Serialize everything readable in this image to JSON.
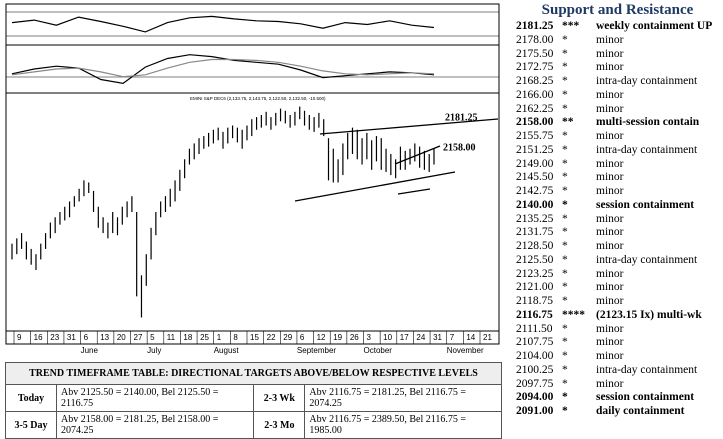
{
  "price_chart": {
    "type": "bar-range",
    "title": "EMINI S&P DEC6 (2,133.75, 2,143.75, 2,122.50, 2,132.50, -10.500)",
    "high": [
      2060,
      2065,
      2070,
      2062,
      2055,
      2050,
      2060,
      2070,
      2080,
      2085,
      2090,
      2095,
      2100,
      2105,
      2112,
      2120,
      2118,
      2110,
      2095,
      2085,
      2080,
      2090,
      2085,
      2095,
      2100,
      2105,
      2090,
      2030,
      2050,
      2075,
      2090,
      2100,
      2105,
      2112,
      2120,
      2130,
      2140,
      2150,
      2155,
      2160,
      2162,
      2165,
      2168,
      2170,
      2166,
      2170,
      2172,
      2170,
      2168,
      2172,
      2178,
      2180,
      2182,
      2185,
      2180,
      2184,
      2188,
      2186,
      2182,
      2185,
      2190,
      2186,
      2182,
      2180,
      2184,
      2178,
      2160,
      2150,
      2140,
      2155,
      2165,
      2170,
      2168,
      2160,
      2165,
      2158,
      2162,
      2160,
      2150,
      2145,
      2140,
      2152,
      2148,
      2150,
      2155,
      2152,
      2148,
      2145,
      2150
    ],
    "low": [
      2045,
      2050,
      2055,
      2045,
      2040,
      2035,
      2045,
      2055,
      2065,
      2070,
      2078,
      2082,
      2085,
      2095,
      2100,
      2105,
      2108,
      2090,
      2075,
      2070,
      2065,
      2070,
      2068,
      2078,
      2085,
      2090,
      2010,
      1990,
      2020,
      2045,
      2068,
      2085,
      2090,
      2095,
      2100,
      2110,
      2122,
      2135,
      2140,
      2145,
      2150,
      2152,
      2155,
      2158,
      2150,
      2155,
      2160,
      2156,
      2150,
      2158,
      2162,
      2168,
      2170,
      2172,
      2168,
      2172,
      2176,
      2174,
      2170,
      2172,
      2178,
      2172,
      2168,
      2166,
      2170,
      2162,
      2120,
      2118,
      2118,
      2125,
      2140,
      2145,
      2140,
      2135,
      2140,
      2130,
      2138,
      2130,
      2128,
      2125,
      2122,
      2130,
      2130,
      2135,
      2138,
      2132,
      2130,
      2128,
      2135
    ],
    "ylim": [
      1980,
      2200
    ],
    "color": "#000000",
    "annotations": [
      "2181.25",
      "2158.00"
    ],
    "x_labels": [
      "9",
      "16",
      "23",
      "31",
      "6",
      "13",
      "20",
      "27",
      "5",
      "11",
      "18",
      "25",
      "1",
      "8",
      "15",
      "22",
      "29",
      "6",
      "12",
      "19",
      "26",
      "3",
      "10",
      "17",
      "24",
      "31",
      "7",
      "14",
      "21"
    ],
    "months": [
      "June",
      "July",
      "August",
      "September",
      "October",
      "November"
    ],
    "rsi": {
      "values": [
        55,
        62,
        48,
        70,
        58,
        45,
        30,
        55,
        68,
        72,
        65,
        60,
        58,
        52,
        40,
        55,
        50,
        60,
        48,
        42
      ],
      "ylim": [
        0,
        100
      ]
    },
    "macd": {
      "series": [
        {
          "color": "#000000",
          "values": [
            -2,
            3,
            6,
            4,
            -8,
            -12,
            5,
            14,
            18,
            16,
            12,
            10,
            8,
            2,
            -6,
            -4,
            -2,
            0,
            -1,
            -3
          ]
        },
        {
          "color": "#888888",
          "values": [
            -3,
            0,
            3,
            4,
            0,
            -5,
            -3,
            4,
            10,
            13,
            13,
            12,
            10,
            6,
            1,
            -2,
            -3,
            -2,
            -1,
            -2
          ]
        }
      ],
      "ylim": [
        -20,
        25
      ]
    }
  },
  "trend_table": {
    "title": "TREND TIMEFRAME TABLE: DIRECTIONAL TARGETS ABOVE/BELOW RESPECTIVE LEVELS",
    "rows": [
      [
        "Today",
        "Abv 2125.50 = 2140.00, Bel 2125.50 = 2116.75",
        "2-3 Wk",
        "Abv 2116.75 = 2181.25, Bel 2116.75 = 2074.25"
      ],
      [
        "3-5 Day",
        "Abv 2158.00 = 2181.25, Bel 2158.00 = 2074.25",
        "2-3 Mo",
        "Abv 2116.75 = 2389.50, Bel 2116.75 = 1985.00"
      ]
    ]
  },
  "support_resistance": {
    "title": "Support and Resistance",
    "levels": [
      {
        "level": "2181.25",
        "stars": "***",
        "label": "weekly containment UP",
        "bold": true
      },
      {
        "level": "2178.00",
        "stars": "*",
        "label": "minor",
        "bold": false
      },
      {
        "level": "2175.50",
        "stars": "*",
        "label": "minor",
        "bold": false
      },
      {
        "level": "2172.75",
        "stars": "*",
        "label": "minor",
        "bold": false
      },
      {
        "level": "2168.25",
        "stars": "*",
        "label": "intra-day containment",
        "bold": false
      },
      {
        "level": "2166.00",
        "stars": "*",
        "label": "minor",
        "bold": false
      },
      {
        "level": "2162.25",
        "stars": "*",
        "label": "minor",
        "bold": false
      },
      {
        "level": "2158.00",
        "stars": "**",
        "label": "multi-session contain",
        "bold": true
      },
      {
        "level": "2155.75",
        "stars": "*",
        "label": "minor",
        "bold": false
      },
      {
        "level": "2151.25",
        "stars": "*",
        "label": "intra-day containment",
        "bold": false
      },
      {
        "level": "2149.00",
        "stars": "*",
        "label": "minor",
        "bold": false
      },
      {
        "level": "2145.50",
        "stars": "*",
        "label": "minor",
        "bold": false
      },
      {
        "level": "2142.75",
        "stars": "*",
        "label": "minor",
        "bold": false
      },
      {
        "level": "2140.00",
        "stars": "*",
        "label": "session containment",
        "bold": true
      },
      {
        "level": "2135.25",
        "stars": "*",
        "label": "minor",
        "bold": false
      },
      {
        "level": "2131.75",
        "stars": "*",
        "label": "minor",
        "bold": false
      },
      {
        "level": "2128.50",
        "stars": "*",
        "label": "minor",
        "bold": false
      },
      {
        "level": "2125.50",
        "stars": "*",
        "label": "intra-day containment",
        "bold": false
      },
      {
        "level": "2123.25",
        "stars": "*",
        "label": "minor",
        "bold": false
      },
      {
        "level": "2121.00",
        "stars": "*",
        "label": "minor",
        "bold": false
      },
      {
        "level": "2118.75",
        "stars": "*",
        "label": "minor",
        "bold": false
      },
      {
        "level": "2116.75",
        "stars": "****",
        "label": "(2123.15 Ix) multi-wk",
        "bold": true
      },
      {
        "level": "2111.50",
        "stars": "*",
        "label": "minor",
        "bold": false
      },
      {
        "level": "2107.75",
        "stars": "*",
        "label": "minor",
        "bold": false
      },
      {
        "level": "2104.00",
        "stars": "*",
        "label": "minor",
        "bold": false
      },
      {
        "level": "2100.25",
        "stars": "*",
        "label": "intra-day containment",
        "bold": false
      },
      {
        "level": "2097.75",
        "stars": "*",
        "label": "minor",
        "bold": false
      },
      {
        "level": "2094.00",
        "stars": "*",
        "label": "session containment",
        "bold": true
      },
      {
        "level": "2091.00",
        "stars": "*",
        "label": "daily containment",
        "bold": true
      }
    ]
  }
}
